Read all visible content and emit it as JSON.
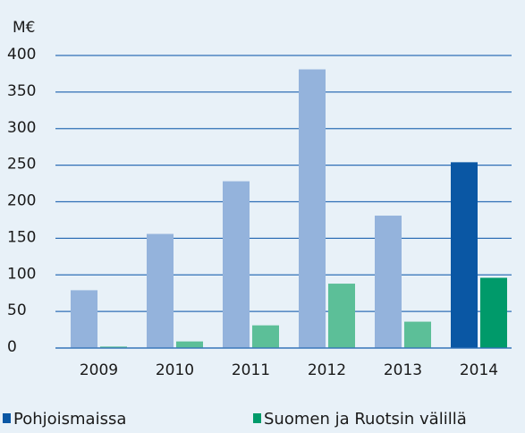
{
  "chart_data": {
    "type": "bar",
    "y_label": "M€",
    "categories": [
      "2009",
      "2010",
      "2011",
      "2012",
      "2013",
      "2014"
    ],
    "series": [
      {
        "name": "Pohjoismaissa",
        "color": "#0a57a4",
        "colors": [
          "#94b3dc",
          "#94b3dc",
          "#94b3dc",
          "#94b3dc",
          "#94b3dc",
          "#0a57a4"
        ],
        "values": [
          79,
          156,
          228,
          381,
          181,
          254
        ]
      },
      {
        "name": "Suomen ja Ruotsin välillä",
        "color": "#009a6a",
        "colors": [
          "#5cbf98",
          "#5cbf98",
          "#5cbf98",
          "#5cbf98",
          "#5cbf98",
          "#009a6a"
        ],
        "values": [
          2,
          9,
          31,
          88,
          36,
          96
        ]
      }
    ],
    "ylim": [
      0,
      400
    ],
    "yticks": [
      0,
      50,
      100,
      150,
      200,
      250,
      300,
      350,
      400
    ],
    "grid": true,
    "legend": "bottom"
  }
}
